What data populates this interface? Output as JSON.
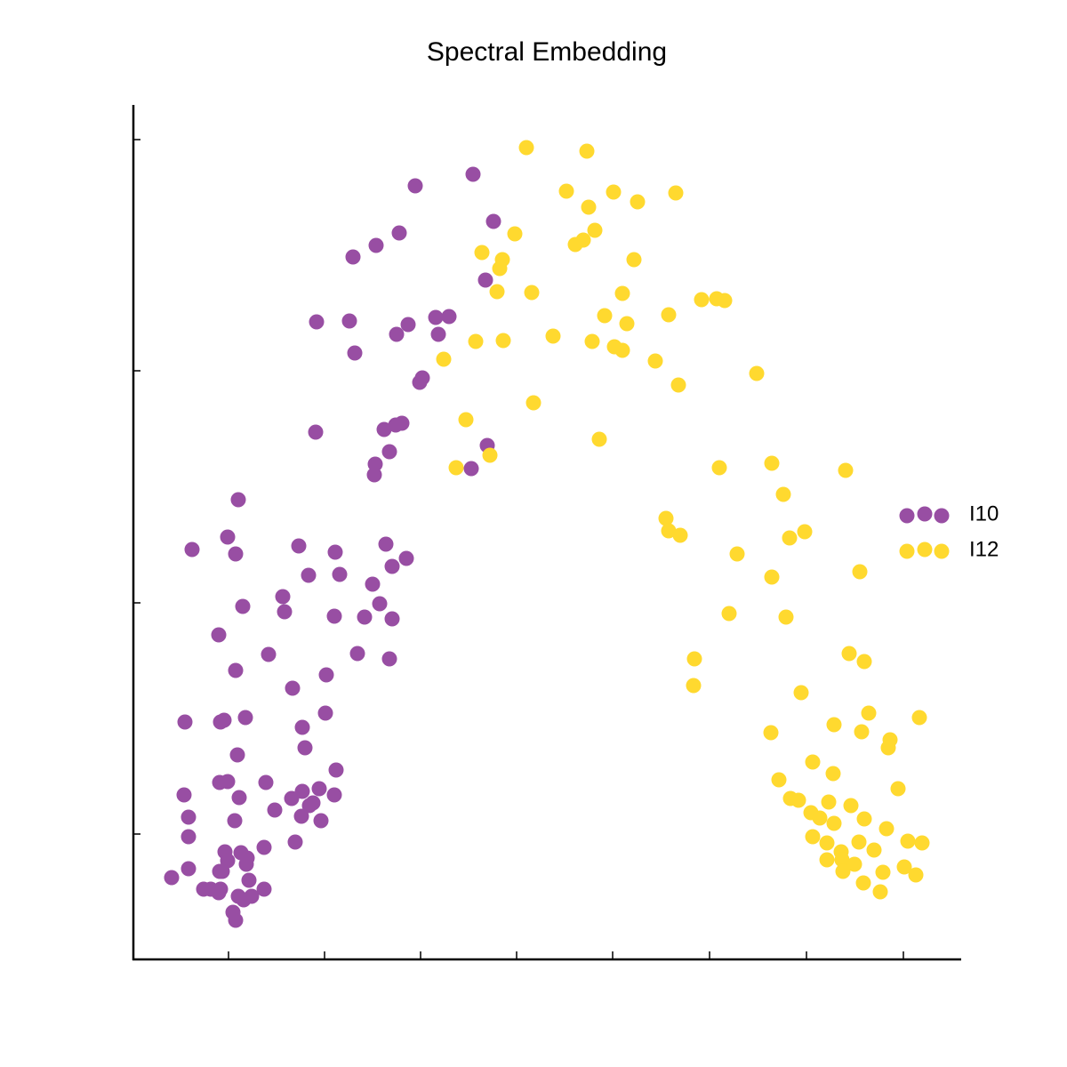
{
  "chart_data": {
    "type": "scatter",
    "title": "Spectral Embedding",
    "xlim": [
      150,
      1080
    ],
    "xticks": [
      257,
      365,
      473,
      581,
      689,
      798,
      907,
      1016
    ],
    "ylim": [
      0,
      958
    ],
    "yticks": [
      140,
      400,
      661,
      921
    ],
    "legend": "right",
    "series": [
      {
        "name": "I10",
        "color": "#984ea3",
        "x": [
          467,
          532,
          555,
          397,
          423,
          449,
          546,
          356,
          393,
          490,
          505,
          459,
          446,
          493,
          399,
          475,
          472,
          355,
          432,
          445,
          452,
          438,
          422,
          421,
          548,
          530,
          268,
          216,
          256,
          265,
          336,
          377,
          434,
          457,
          441,
          347,
          382,
          419,
          318,
          273,
          320,
          427,
          376,
          410,
          441,
          246,
          302,
          402,
          438,
          265,
          367,
          329,
          208,
          248,
          252,
          276,
          366,
          340,
          267,
          343,
          378,
          247,
          256,
          299,
          207,
          269,
          328,
          340,
          359,
          376,
          352,
          348,
          309,
          339,
          212,
          264,
          361,
          212,
          332,
          297,
          253,
          271,
          256,
          277,
          278,
          212,
          247,
          193,
          250,
          280,
          229,
          237,
          248,
          246,
          297,
          268,
          283,
          274,
          262,
          265
        ],
        "values": [
          869,
          882,
          829,
          789,
          802,
          816,
          763,
          716,
          717,
          721,
          722,
          713,
          702,
          702,
          681,
          653,
          648,
          592,
          595,
          600,
          602,
          570,
          556,
          544,
          577,
          551,
          516,
          460,
          474,
          455,
          464,
          457,
          466,
          450,
          441,
          431,
          432,
          421,
          407,
          396,
          390,
          399,
          385,
          384,
          382,
          364,
          342,
          343,
          337,
          324,
          319,
          304,
          266,
          266,
          268,
          271,
          276,
          260,
          229,
          237,
          212,
          198,
          199,
          198,
          184,
          181,
          180,
          188,
          191,
          184,
          175,
          172,
          167,
          160,
          159,
          155,
          155,
          137,
          131,
          125,
          120,
          119,
          110,
          106,
          113,
          101,
          98,
          91,
          98,
          88,
          78,
          78,
          78,
          74,
          78,
          70,
          70,
          66,
          52,
          43
        ]
      },
      {
        "name": "I12",
        "color": "#ffd92f",
        "x": [
          592,
          660,
          637,
          690,
          760,
          662,
          717,
          579,
          669,
          656,
          647,
          542,
          565,
          562,
          713,
          559,
          598,
          700,
          789,
          806,
          815,
          680,
          752,
          705,
          535,
          566,
          622,
          666,
          691,
          700,
          499,
          737,
          763,
          851,
          600,
          524,
          674,
          551,
          513,
          809,
          868,
          951,
          881,
          749,
          752,
          765,
          888,
          905,
          829,
          868,
          967,
          820,
          884,
          781,
          780,
          955,
          972,
          901,
          977,
          1034,
          867,
          938,
          969,
          1001,
          999,
          914,
          937,
          876,
          1010,
          889,
          898,
          932,
          957,
          912,
          922,
          938,
          972,
          997,
          914,
          930,
          966,
          1021,
          1037,
          946,
          983,
          930,
          947,
          961,
          948,
          993,
          1017,
          1030,
          971,
          990
        ],
        "values": [
          912,
          908,
          863,
          862,
          861,
          845,
          851,
          815,
          819,
          808,
          803,
          794,
          786,
          776,
          786,
          750,
          749,
          748,
          741,
          742,
          740,
          723,
          724,
          714,
          694,
          695,
          700,
          694,
          688,
          684,
          674,
          672,
          645,
          658,
          625,
          606,
          584,
          566,
          552,
          552,
          557,
          549,
          522,
          495,
          481,
          476,
          473,
          480,
          455,
          429,
          435,
          388,
          384,
          337,
          307,
          343,
          334,
          299,
          276,
          271,
          254,
          263,
          255,
          246,
          237,
          221,
          208,
          201,
          191,
          180,
          178,
          176,
          172,
          164,
          158,
          152,
          157,
          146,
          137,
          130,
          131,
          132,
          130,
          120,
          122,
          111,
          111,
          106,
          98,
          97,
          103,
          94,
          85,
          75
        ]
      }
    ]
  }
}
